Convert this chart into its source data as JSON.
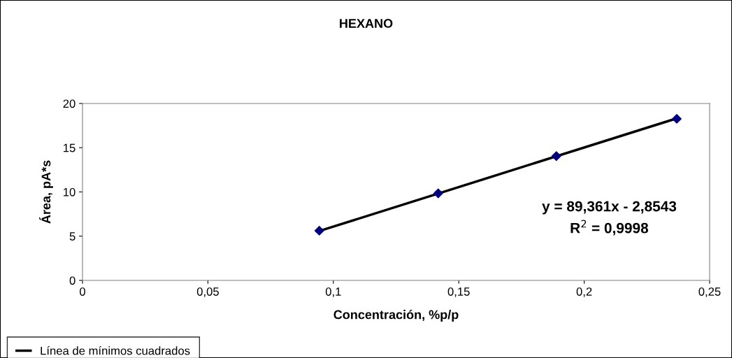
{
  "chart_data": {
    "type": "scatter",
    "title": "HEXANO",
    "xlabel": "Concentración, %p/p",
    "ylabel": "Área, pA*s",
    "series": [
      {
        "color": "#000080",
        "marker": "diamond",
        "x": [
          0.0944,
          0.1418,
          0.1889,
          0.2369
        ],
        "values": [
          5.62,
          9.84,
          14.05,
          18.27
        ]
      },
      {
        "type": "line",
        "name": "Línea de mínimos cuadrados",
        "color": "#000000",
        "marker": "none",
        "x": [
          0.0944,
          0.2369
        ],
        "values": [
          5.58,
          18.32
        ]
      }
    ],
    "xlim": [
      0,
      0.25
    ],
    "xticks": [
      0,
      {
        "value": 0.05,
        "label": "0,05"
      },
      {
        "value": 0.1,
        "label": "0,1"
      },
      {
        "value": 0.15,
        "label": "0,15"
      },
      {
        "value": 0.2,
        "label": "0,2"
      },
      {
        "value": 0.25,
        "label": "0,25"
      }
    ],
    "ylim": [
      0,
      20
    ],
    "yticks": [
      0,
      5,
      10,
      15,
      20
    ],
    "annotations": [
      "y = 89,361x - 2,8543\nR$^{2}$ = 0,9998"
    ],
    "grid": false,
    "legend": "bottom left"
  }
}
